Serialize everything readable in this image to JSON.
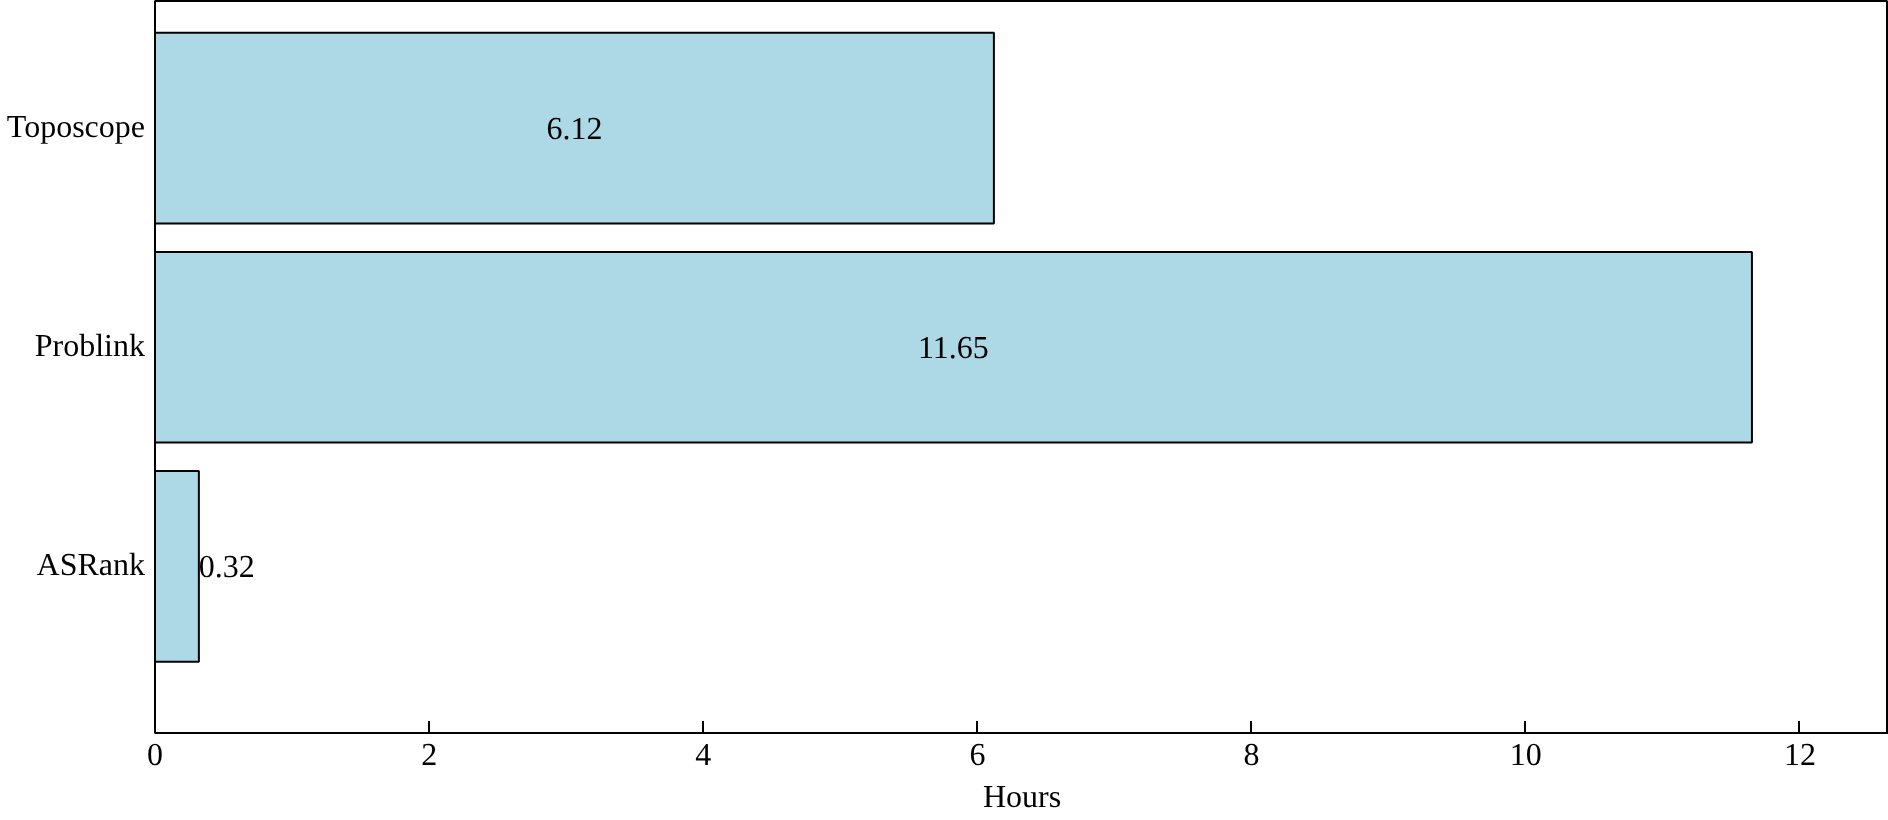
{
  "chart_data": {
    "type": "bar",
    "orientation": "horizontal",
    "categories": [
      "Toposcope",
      "Problink",
      "ASRank"
    ],
    "values": [
      6.12,
      11.65,
      0.32
    ],
    "color": "#add8e6",
    "xlabel": "Hours",
    "xlim": [
      0,
      12.65
    ],
    "xticks": [
      0,
      2,
      4,
      6,
      8,
      10,
      12
    ],
    "data_labels": true,
    "grid": false
  }
}
